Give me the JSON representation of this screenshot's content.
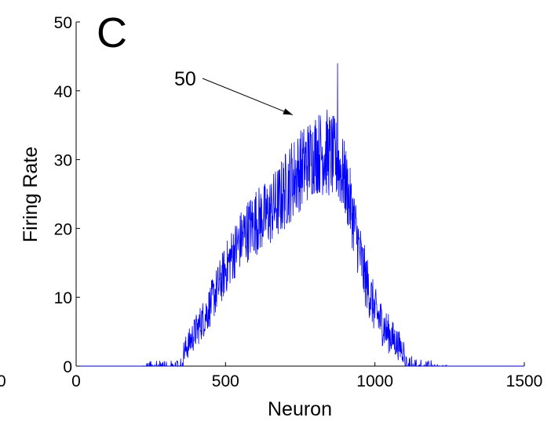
{
  "panel_letter": "C",
  "edge_fragment": "0",
  "chart_data": {
    "type": "line",
    "xlabel": "Neuron",
    "ylabel": "Firing Rate",
    "xlim": [
      0,
      1500
    ],
    "ylim": [
      0,
      50
    ],
    "xticks": [
      0,
      500,
      1000,
      1500
    ],
    "yticks": [
      0,
      10,
      20,
      30,
      40,
      50
    ],
    "grid": false,
    "series": [
      {
        "color": "#0000ff",
        "description": "noisy firing-rate profile across neurons",
        "x": [
          0,
          220,
          240,
          300,
          340,
          360,
          400,
          440,
          480,
          520,
          560,
          600,
          640,
          680,
          720,
          760,
          800,
          840,
          870,
          900,
          930,
          960,
          1000,
          1040,
          1080,
          1120,
          1160,
          1200,
          1260,
          1500
        ],
        "y": [
          0,
          0,
          0.5,
          0.5,
          1,
          2,
          5,
          8,
          12,
          16,
          19,
          21,
          22,
          24,
          27,
          29,
          31,
          31,
          30,
          27,
          21,
          14,
          8,
          5,
          3,
          1,
          0.5,
          0.3,
          0,
          0
        ],
        "noise": [
          0,
          0,
          0.8,
          0.8,
          1.2,
          1.8,
          2.5,
          3,
          3.5,
          4,
          4.5,
          5,
          5,
          5.5,
          6,
          6,
          6,
          6.5,
          6,
          5.5,
          5,
          4.5,
          3.5,
          3,
          2.2,
          1.5,
          1,
          0.8,
          0,
          0
        ],
        "peak": {
          "x": 875,
          "y": 44
        }
      }
    ],
    "annotations": [
      {
        "text": "50",
        "target": {
          "x": 725,
          "y": 36.5
        }
      }
    ]
  }
}
